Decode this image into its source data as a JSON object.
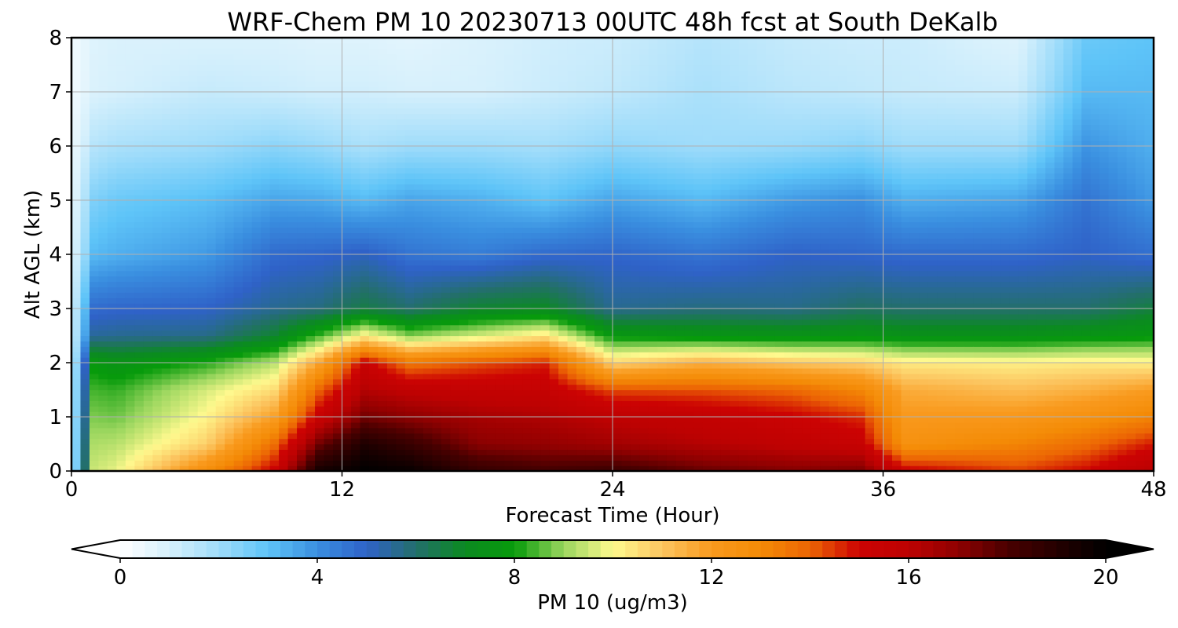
{
  "chart_data": {
    "type": "heatmap",
    "title": "WRF-Chem PM 10  20230713 00UTC 48h fcst at South DeKalb",
    "xlabel": "Forecast Time (Hour)",
    "ylabel": "Alt AGL (km)",
    "xlim": [
      0,
      48
    ],
    "ylim": [
      0,
      8
    ],
    "xticks": [
      0,
      12,
      24,
      36,
      48
    ],
    "yticks": [
      0,
      1,
      2,
      3,
      4,
      5,
      6,
      7,
      8
    ],
    "grid": true,
    "colorbar": {
      "label": "PM 10  (ug/m3)",
      "orientation": "horizontal",
      "placement": "bottom",
      "range": [
        0,
        20
      ],
      "ticks": [
        0,
        4,
        8,
        12,
        16,
        20
      ],
      "extend": "both",
      "min_color": "#ffffff",
      "max_color": "#000000",
      "colormap": [
        {
          "v": 0,
          "c": "#ffffff"
        },
        {
          "v": 1,
          "c": "#d6f0fc"
        },
        {
          "v": 2,
          "c": "#9fdcfa"
        },
        {
          "v": 3,
          "c": "#5ec4f8"
        },
        {
          "v": 4,
          "c": "#3a8fe0"
        },
        {
          "v": 5,
          "c": "#2f62c8"
        },
        {
          "v": 6,
          "c": "#236f6b"
        },
        {
          "v": 7,
          "c": "#0b8a21"
        },
        {
          "v": 8,
          "c": "#079b0b"
        },
        {
          "v": 9,
          "c": "#9ad65e"
        },
        {
          "v": 10,
          "c": "#fef98e"
        },
        {
          "v": 11,
          "c": "#fcc560"
        },
        {
          "v": 12,
          "c": "#f99a1e"
        },
        {
          "v": 13,
          "c": "#f48b06"
        },
        {
          "v": 14,
          "c": "#ec6504"
        },
        {
          "v": 15,
          "c": "#cc0303"
        },
        {
          "v": 16,
          "c": "#bd0202"
        },
        {
          "v": 17,
          "c": "#8f0101"
        },
        {
          "v": 18,
          "c": "#4a0000"
        },
        {
          "v": 20,
          "c": "#000000"
        }
      ]
    },
    "series": [
      {
        "time_h": 0,
        "profile_km": [
          0,
          0.5,
          1,
          1.5,
          2,
          2.5,
          3,
          4,
          5,
          6,
          7,
          8
        ],
        "values": [
          0.8,
          0.8,
          0.8,
          0.8,
          0.8,
          0.8,
          0.8,
          0.6,
          0.5,
          0.4,
          0.3,
          0.3
        ]
      },
      {
        "time_h": 1,
        "profile_km": [
          0,
          0.5,
          1,
          1.5,
          2,
          2.5,
          3,
          4,
          5,
          6,
          7,
          8
        ],
        "values": [
          9.5,
          9.2,
          8.8,
          8.4,
          7.8,
          5.5,
          4.8,
          3.2,
          2.5,
          1.6,
          0.9,
          0.8
        ]
      },
      {
        "time_h": 2,
        "profile_km": [
          0,
          0.5,
          1,
          1.5,
          2,
          2.5,
          3,
          4,
          5,
          6,
          7,
          8
        ],
        "values": [
          9.8,
          9.3,
          8.7,
          8.3,
          7.5,
          5.6,
          4.9,
          3.4,
          2.8,
          1.8,
          1.0,
          0.9
        ]
      },
      {
        "time_h": 6,
        "profile_km": [
          0,
          0.5,
          1,
          1.5,
          2,
          2.5,
          3,
          4,
          5,
          6,
          7,
          8
        ],
        "values": [
          12.8,
          10.8,
          10.1,
          9.6,
          8.2,
          5.7,
          5.0,
          3.8,
          3.1,
          2.0,
          1.3,
          0.9
        ]
      },
      {
        "time_h": 9,
        "profile_km": [
          0,
          0.5,
          1,
          1.5,
          2,
          2.5,
          3,
          4,
          5,
          6,
          7,
          8
        ],
        "values": [
          15.2,
          13.8,
          11.9,
          10.6,
          9.3,
          6.8,
          5.6,
          4.8,
          3.6,
          2.3,
          1.2,
          0.9
        ]
      },
      {
        "time_h": 11,
        "profile_km": [
          0,
          0.5,
          1,
          1.5,
          2,
          2.5,
          3,
          4,
          5,
          6,
          7,
          8
        ],
        "values": [
          19.5,
          17.5,
          15.4,
          14.0,
          11.8,
          8.4,
          5.8,
          4.9,
          3.5,
          2.1,
          1.1,
          0.8
        ]
      },
      {
        "time_h": 13,
        "profile_km": [
          0,
          0.5,
          1,
          1.5,
          2,
          2.5,
          3,
          4,
          5,
          6,
          7,
          8
        ],
        "values": [
          20,
          19.2,
          17.4,
          16.2,
          15.3,
          10.2,
          6.5,
          5.1,
          3.2,
          1.8,
          1.1,
          0.8
        ]
      },
      {
        "time_h": 15,
        "profile_km": [
          0,
          0.5,
          1,
          1.5,
          2,
          2.5,
          3,
          4,
          5,
          6,
          7,
          8
        ],
        "values": [
          19.8,
          18.5,
          17.0,
          15.8,
          13.6,
          8.9,
          6.0,
          4.6,
          3.6,
          2.0,
          1.0,
          0.7
        ]
      },
      {
        "time_h": 18,
        "profile_km": [
          0,
          0.5,
          1,
          1.5,
          2,
          2.5,
          3,
          4,
          5,
          6,
          7,
          8
        ],
        "values": [
          18.6,
          17.1,
          16.5,
          15.6,
          14.2,
          9.6,
          6.8,
          4.4,
          3.4,
          2.0,
          1.0,
          0.9
        ]
      },
      {
        "time_h": 21,
        "profile_km": [
          0,
          0.5,
          1,
          1.5,
          2,
          2.5,
          3,
          4,
          5,
          6,
          7,
          8
        ],
        "values": [
          18.2,
          16.9,
          16.3,
          15.5,
          14.7,
          10.4,
          7.0,
          4.8,
          3.0,
          1.9,
          1.2,
          1.1
        ]
      },
      {
        "time_h": 24,
        "profile_km": [
          0,
          0.5,
          1,
          1.5,
          2,
          2.5,
          3,
          4,
          5,
          6,
          7,
          8
        ],
        "values": [
          18.4,
          16.6,
          15.9,
          14.3,
          10.7,
          7.8,
          5.6,
          4.9,
          3.6,
          2.2,
          1.4,
          1.2
        ]
      },
      {
        "time_h": 28,
        "profile_km": [
          0,
          0.5,
          1,
          1.5,
          2,
          2.5,
          3,
          4,
          5,
          6,
          7,
          8
        ],
        "values": [
          17.6,
          16.2,
          15.6,
          14.2,
          11.5,
          7.6,
          5.8,
          4.6,
          3.2,
          2.0,
          1.8,
          1.6
        ]
      },
      {
        "time_h": 32,
        "profile_km": [
          0,
          0.5,
          1,
          1.5,
          2,
          2.5,
          3,
          4,
          5,
          6,
          7,
          8
        ],
        "values": [
          17.2,
          15.8,
          15.1,
          13.9,
          11.0,
          7.5,
          5.7,
          5.0,
          3.8,
          2.1,
          1.5,
          1.3
        ]
      },
      {
        "time_h": 35,
        "profile_km": [
          0,
          0.5,
          1,
          1.5,
          2,
          2.5,
          3,
          4,
          5,
          6,
          7,
          8
        ],
        "values": [
          17.3,
          15.4,
          14.6,
          13.1,
          10.8,
          7.6,
          6.1,
          4.9,
          4.0,
          2.3,
          1.4,
          1.2
        ]
      },
      {
        "time_h": 37,
        "profile_km": [
          0,
          0.5,
          1,
          1.5,
          2,
          2.5,
          3,
          4,
          5,
          6,
          7,
          8
        ],
        "values": [
          15.2,
          12.6,
          12.1,
          11.6,
          10.3,
          7.4,
          6.0,
          4.8,
          3.4,
          2.0,
          1.3,
          1.2
        ]
      },
      {
        "time_h": 42,
        "profile_km": [
          0,
          0.5,
          1,
          1.5,
          2,
          2.5,
          3,
          4,
          5,
          6,
          7,
          8
        ],
        "values": [
          14.4,
          13.2,
          12.2,
          11.2,
          10.2,
          7.4,
          6.0,
          4.8,
          3.6,
          2.0,
          1.2,
          0.8
        ]
      },
      {
        "time_h": 45,
        "profile_km": [
          0,
          0.5,
          1,
          1.5,
          2,
          2.5,
          3,
          4,
          5,
          6,
          7,
          8
        ],
        "values": [
          15.0,
          13.8,
          12.6,
          11.5,
          10.3,
          7.6,
          6.0,
          5.0,
          4.6,
          3.9,
          3.2,
          2.8
        ]
      },
      {
        "time_h": 48,
        "profile_km": [
          0,
          0.5,
          1,
          1.5,
          2,
          2.5,
          3,
          4,
          5,
          6,
          7,
          8
        ],
        "values": [
          16.2,
          14.8,
          13.2,
          12.0,
          10.2,
          7.8,
          6.6,
          4.7,
          3.8,
          3.4,
          3.2,
          3.0
        ]
      }
    ]
  }
}
